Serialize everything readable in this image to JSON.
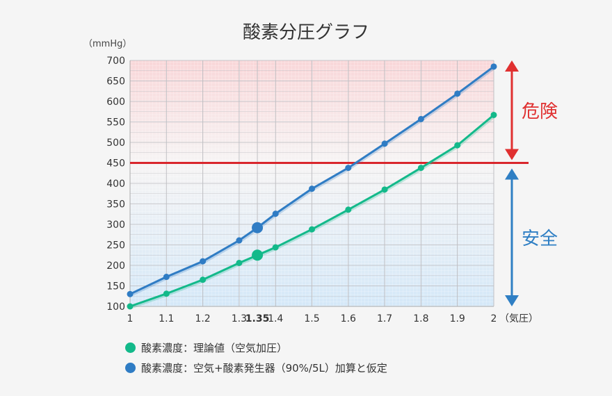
{
  "chart_data": {
    "type": "line",
    "title": "酸素分圧グラフ",
    "ylabel": "（mmHg）",
    "xlabel": "（気圧）",
    "x": [
      1,
      1.1,
      1.2,
      1.3,
      1.35,
      1.4,
      1.5,
      1.6,
      1.7,
      1.8,
      1.9,
      2
    ],
    "x_tick_labels": [
      "1",
      "1.1",
      "1.2",
      "1.3",
      "1.35",
      "1.4",
      "1.5",
      "1.6",
      "1.7",
      "1.8",
      "1.9",
      "2"
    ],
    "highlight_x": 1.35,
    "y_ticks": [
      100,
      150,
      200,
      250,
      300,
      350,
      400,
      450,
      500,
      550,
      600,
      650,
      700
    ],
    "xlim": [
      1,
      2
    ],
    "ylim": [
      100,
      700
    ],
    "grid": true,
    "threshold": {
      "value": 450,
      "color": "#d9262c"
    },
    "zones": [
      {
        "label": "危険",
        "color": "#e03030",
        "range": [
          450,
          700
        ]
      },
      {
        "label": "安全",
        "color": "#2f7fc4",
        "range": [
          100,
          450
        ]
      }
    ],
    "series": [
      {
        "name": "酸素濃度：理論値（空気加圧）",
        "color": "#13b98a",
        "values": [
          100,
          131,
          165,
          206,
          225,
          244,
          288,
          336,
          385,
          438,
          493,
          567
        ]
      },
      {
        "name": "酸素濃度：空気+酸素発生器（90%/5L）加算と仮定",
        "color": "#2f7cc4",
        "values": [
          130,
          172,
          210,
          261,
          292,
          326,
          387,
          438,
          497,
          557,
          619,
          685
        ]
      }
    ],
    "legend_position": "bottom"
  }
}
